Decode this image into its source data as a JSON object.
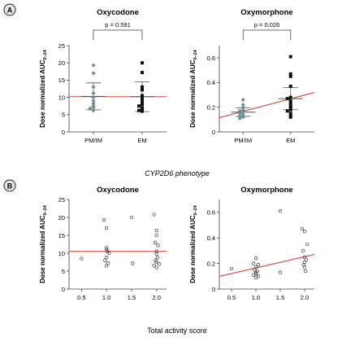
{
  "panels": [
    {
      "letter": "A"
    },
    {
      "letter": "B"
    }
  ],
  "group_label": "CYP2D6 phenotype",
  "bottom_xlabel": "Total activity score",
  "colors": {
    "axis": "#444444",
    "fit_line": "#d9473f",
    "mean_bar": "#555555",
    "pm_marker": "#6f8e93",
    "em_marker": "#111111",
    "circle_marker": "#333333",
    "panel_letter_bg": "#e6e6e6"
  },
  "chart_data": [
    {
      "type": "scatter",
      "title": "Oxycodone",
      "ylabel": "Dose normalized AUC",
      "ylabel_sub": "0–24",
      "ylim": [
        0,
        25
      ],
      "yticks": [
        "0",
        "5",
        "10",
        "15",
        "20",
        "25"
      ],
      "categories": [
        "PM/IM",
        "EM"
      ],
      "pvalue": "p = 0.591",
      "fit_line": {
        "x": [
          -0.5,
          1.5
        ],
        "y": [
          10.2,
          10.2
        ]
      },
      "series": [
        {
          "values": [
            19.3,
            17.0,
            13.0,
            11.2,
            10.0,
            9.0,
            8.2,
            7.5,
            7.0,
            6.8,
            6.2
          ],
          "mean": 10.3,
          "sd": 3.9
        },
        {
          "values": [
            20.0,
            17.2,
            13.0,
            12.2,
            10.5,
            9.8,
            9.0,
            8.5,
            8.0,
            7.5,
            7.0,
            6.5,
            6.2,
            6.0
          ],
          "mean": 10.2,
          "sd": 4.3
        }
      ]
    },
    {
      "type": "scatter",
      "title": "Oxymorphone",
      "ylabel": "Dose normalized AUC",
      "ylabel_sub": "0–24",
      "ylim": [
        0,
        0.7
      ],
      "yticks": [
        "0",
        "0.2",
        "0.4",
        "0.6"
      ],
      "categories": [
        "PM/IM",
        "EM"
      ],
      "pvalue": "p = 0.026",
      "fit_line": {
        "x": [
          -0.5,
          1.5
        ],
        "y": [
          0.115,
          0.32
        ]
      },
      "series": [
        {
          "values": [
            0.26,
            0.22,
            0.2,
            0.18,
            0.17,
            0.16,
            0.15,
            0.14,
            0.13,
            0.12,
            0.11
          ],
          "mean": 0.16,
          "sd": 0.034
        },
        {
          "values": [
            0.61,
            0.47,
            0.45,
            0.37,
            0.28,
            0.27,
            0.25,
            0.23,
            0.21,
            0.2,
            0.18,
            0.17,
            0.15,
            0.13,
            0.12
          ],
          "mean": 0.27,
          "sd": 0.09
        }
      ]
    },
    {
      "type": "scatter",
      "title": "Oxycodone",
      "ylabel": "Dose normalized AUC",
      "ylabel_sub": "0–24",
      "xlabel": "Total activity score",
      "xlim": [
        0.25,
        2.2
      ],
      "ylim": [
        0,
        25
      ],
      "xticks": [
        "0.5",
        "1.0",
        "1.5",
        "2.0"
      ],
      "yticks": [
        "0",
        "5",
        "10",
        "15",
        "20",
        "25"
      ],
      "fit_line": {
        "x": [
          0.25,
          2.2
        ],
        "y": [
          10.5,
          10.5
        ]
      },
      "points": {
        "x": [
          0.5,
          0.95,
          1.0,
          1.0,
          1.0,
          1.02,
          1.05,
          1.0,
          0.97,
          1.03,
          1.0,
          1.5,
          1.52,
          1.95,
          2.0,
          2.0,
          1.97,
          2.03,
          2.0,
          2.0,
          2.02,
          1.98,
          2.0,
          2.05,
          1.95,
          2.0
        ],
        "y": [
          8.5,
          19.3,
          17.0,
          11.5,
          11.0,
          10.5,
          10.0,
          8.8,
          8.0,
          7.2,
          6.5,
          20.0,
          7.2,
          20.8,
          16.3,
          15.0,
          13.0,
          12.2,
          10.5,
          9.8,
          8.8,
          8.0,
          7.5,
          7.0,
          6.5,
          6.0
        ]
      }
    },
    {
      "type": "scatter",
      "title": "Oxymorphone",
      "ylabel": "Dose normalized AUC",
      "ylabel_sub": "0–24",
      "xlabel": "Total activity score",
      "xlim": [
        0.25,
        2.2
      ],
      "ylim": [
        0,
        0.7
      ],
      "xticks": [
        "0.5",
        "1.0",
        "1.5",
        "2.0"
      ],
      "yticks": [
        "0",
        "0.2",
        "0.4",
        "0.6"
      ],
      "fit_line": {
        "x": [
          0.25,
          2.2
        ],
        "y": [
          0.1,
          0.27
        ]
      },
      "points": {
        "x": [
          0.5,
          1.0,
          0.95,
          1.05,
          1.0,
          0.97,
          1.03,
          1.0,
          1.0,
          0.95,
          1.05,
          1.0,
          1.5,
          1.5,
          1.95,
          2.0,
          2.05,
          1.97,
          2.0,
          2.03,
          2.0,
          1.98,
          2.0,
          2.02
        ],
        "y": [
          0.16,
          0.24,
          0.2,
          0.19,
          0.17,
          0.15,
          0.14,
          0.13,
          0.12,
          0.11,
          0.1,
          0.09,
          0.61,
          0.13,
          0.47,
          0.45,
          0.35,
          0.3,
          0.25,
          0.23,
          0.21,
          0.19,
          0.17,
          0.14
        ]
      }
    }
  ]
}
